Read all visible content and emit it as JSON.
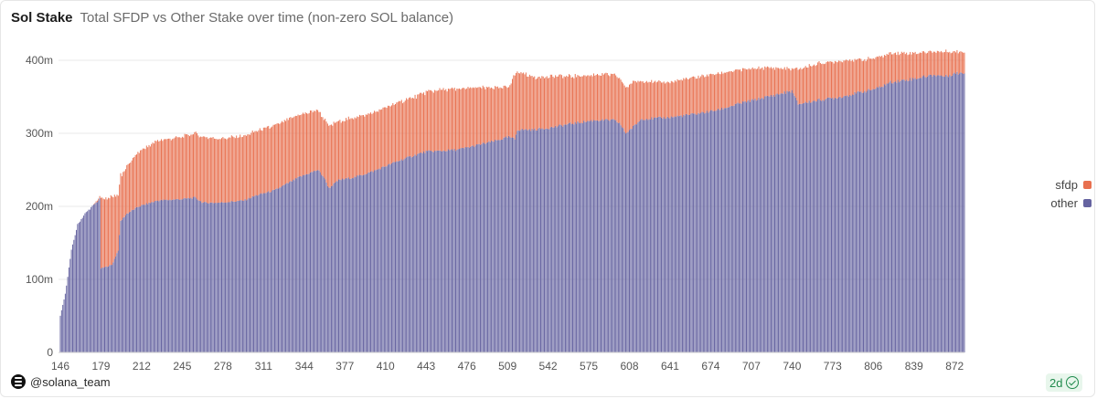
{
  "header": {
    "title": "Sol Stake",
    "subtitle": "Total SFDP vs Other Stake over time (non-zero SOL balance)"
  },
  "footer": {
    "handle": "@solana_team",
    "freshness": "2d"
  },
  "colors": {
    "sfdp": "#e8704f",
    "other": "#6563a0",
    "grid": "#e9e9e9",
    "axis_text": "#555555"
  },
  "icons": {
    "logo": "solana-logo-icon",
    "status": "check-circle-icon"
  },
  "chart_data": {
    "type": "bar",
    "stacked": true,
    "title": "Total SFDP vs Other Stake over time (non-zero SOL balance)",
    "xlabel": "",
    "ylabel": "",
    "x_range": [
      146,
      880
    ],
    "ylim": [
      0,
      400000000
    ],
    "y_ticks": [
      0,
      100000000,
      200000000,
      300000000,
      400000000
    ],
    "y_tick_labels": [
      "0",
      "100m",
      "200m",
      "300m",
      "400m"
    ],
    "x_ticks": [
      146,
      179,
      212,
      245,
      278,
      311,
      344,
      377,
      410,
      443,
      476,
      509,
      542,
      575,
      608,
      641,
      674,
      707,
      740,
      773,
      806,
      839,
      872
    ],
    "grid": true,
    "legend_position": "right",
    "series_order": [
      "other",
      "sfdp"
    ],
    "series": [
      {
        "name": "other",
        "color": "#6563a0",
        "points": [
          [
            146,
            50000000
          ],
          [
            150,
            80000000
          ],
          [
            155,
            140000000
          ],
          [
            160,
            175000000
          ],
          [
            166,
            190000000
          ],
          [
            172,
            200000000
          ],
          [
            178,
            210000000
          ],
          [
            179,
            115000000
          ],
          [
            188,
            120000000
          ],
          [
            193,
            140000000
          ],
          [
            195,
            180000000
          ],
          [
            200,
            190000000
          ],
          [
            210,
            200000000
          ],
          [
            225,
            208000000
          ],
          [
            245,
            210000000
          ],
          [
            255,
            212000000
          ],
          [
            262,
            205000000
          ],
          [
            275,
            205000000
          ],
          [
            295,
            208000000
          ],
          [
            305,
            215000000
          ],
          [
            320,
            222000000
          ],
          [
            340,
            240000000
          ],
          [
            355,
            250000000
          ],
          [
            360,
            240000000
          ],
          [
            364,
            225000000
          ],
          [
            372,
            236000000
          ],
          [
            385,
            240000000
          ],
          [
            400,
            248000000
          ],
          [
            420,
            262000000
          ],
          [
            437,
            272000000
          ],
          [
            443,
            275000000
          ],
          [
            456,
            276000000
          ],
          [
            470,
            278000000
          ],
          [
            480,
            282000000
          ],
          [
            500,
            290000000
          ],
          [
            510,
            295000000
          ],
          [
            515,
            292000000
          ],
          [
            517,
            305000000
          ],
          [
            530,
            305000000
          ],
          [
            545,
            308000000
          ],
          [
            560,
            313000000
          ],
          [
            580,
            318000000
          ],
          [
            595,
            318000000
          ],
          [
            600,
            314000000
          ],
          [
            605,
            300000000
          ],
          [
            612,
            310000000
          ],
          [
            618,
            320000000
          ],
          [
            625,
            320000000
          ],
          [
            641,
            322000000
          ],
          [
            660,
            326000000
          ],
          [
            680,
            332000000
          ],
          [
            700,
            342000000
          ],
          [
            720,
            350000000
          ],
          [
            740,
            358000000
          ],
          [
            745,
            340000000
          ],
          [
            760,
            345000000
          ],
          [
            780,
            350000000
          ],
          [
            800,
            358000000
          ],
          [
            810,
            362000000
          ],
          [
            820,
            370000000
          ],
          [
            840,
            375000000
          ],
          [
            855,
            380000000
          ],
          [
            865,
            378000000
          ],
          [
            872,
            382000000
          ],
          [
            880,
            383000000
          ]
        ]
      },
      {
        "name": "sfdp",
        "color": "#e8704f",
        "points": [
          [
            146,
            0
          ],
          [
            172,
            0
          ],
          [
            178,
            3000000
          ],
          [
            179,
            95000000
          ],
          [
            188,
            93000000
          ],
          [
            192,
            80000000
          ],
          [
            196,
            60000000
          ],
          [
            200,
            65000000
          ],
          [
            210,
            75000000
          ],
          [
            225,
            82000000
          ],
          [
            245,
            85000000
          ],
          [
            262,
            90000000
          ],
          [
            275,
            88000000
          ],
          [
            295,
            88000000
          ],
          [
            305,
            88000000
          ],
          [
            320,
            88000000
          ],
          [
            340,
            85000000
          ],
          [
            355,
            82000000
          ],
          [
            360,
            80000000
          ],
          [
            364,
            85000000
          ],
          [
            372,
            80000000
          ],
          [
            385,
            82000000
          ],
          [
            400,
            80000000
          ],
          [
            420,
            80000000
          ],
          [
            437,
            80000000
          ],
          [
            456,
            84000000
          ],
          [
            470,
            82000000
          ],
          [
            480,
            80000000
          ],
          [
            500,
            72000000
          ],
          [
            510,
            68000000
          ],
          [
            515,
            88000000
          ],
          [
            517,
            80000000
          ],
          [
            530,
            72000000
          ],
          [
            545,
            70000000
          ],
          [
            560,
            65000000
          ],
          [
            580,
            62000000
          ],
          [
            600,
            62000000
          ],
          [
            605,
            62000000
          ],
          [
            612,
            62000000
          ],
          [
            618,
            52000000
          ],
          [
            625,
            50000000
          ],
          [
            641,
            48000000
          ],
          [
            660,
            50000000
          ],
          [
            680,
            50000000
          ],
          [
            700,
            45000000
          ],
          [
            720,
            40000000
          ],
          [
            740,
            30000000
          ],
          [
            745,
            48000000
          ],
          [
            760,
            50000000
          ],
          [
            780,
            50000000
          ],
          [
            800,
            43000000
          ],
          [
            810,
            42000000
          ],
          [
            820,
            40000000
          ],
          [
            840,
            35000000
          ],
          [
            855,
            32000000
          ],
          [
            865,
            34000000
          ],
          [
            872,
            30000000
          ],
          [
            880,
            29000000
          ]
        ]
      }
    ]
  }
}
